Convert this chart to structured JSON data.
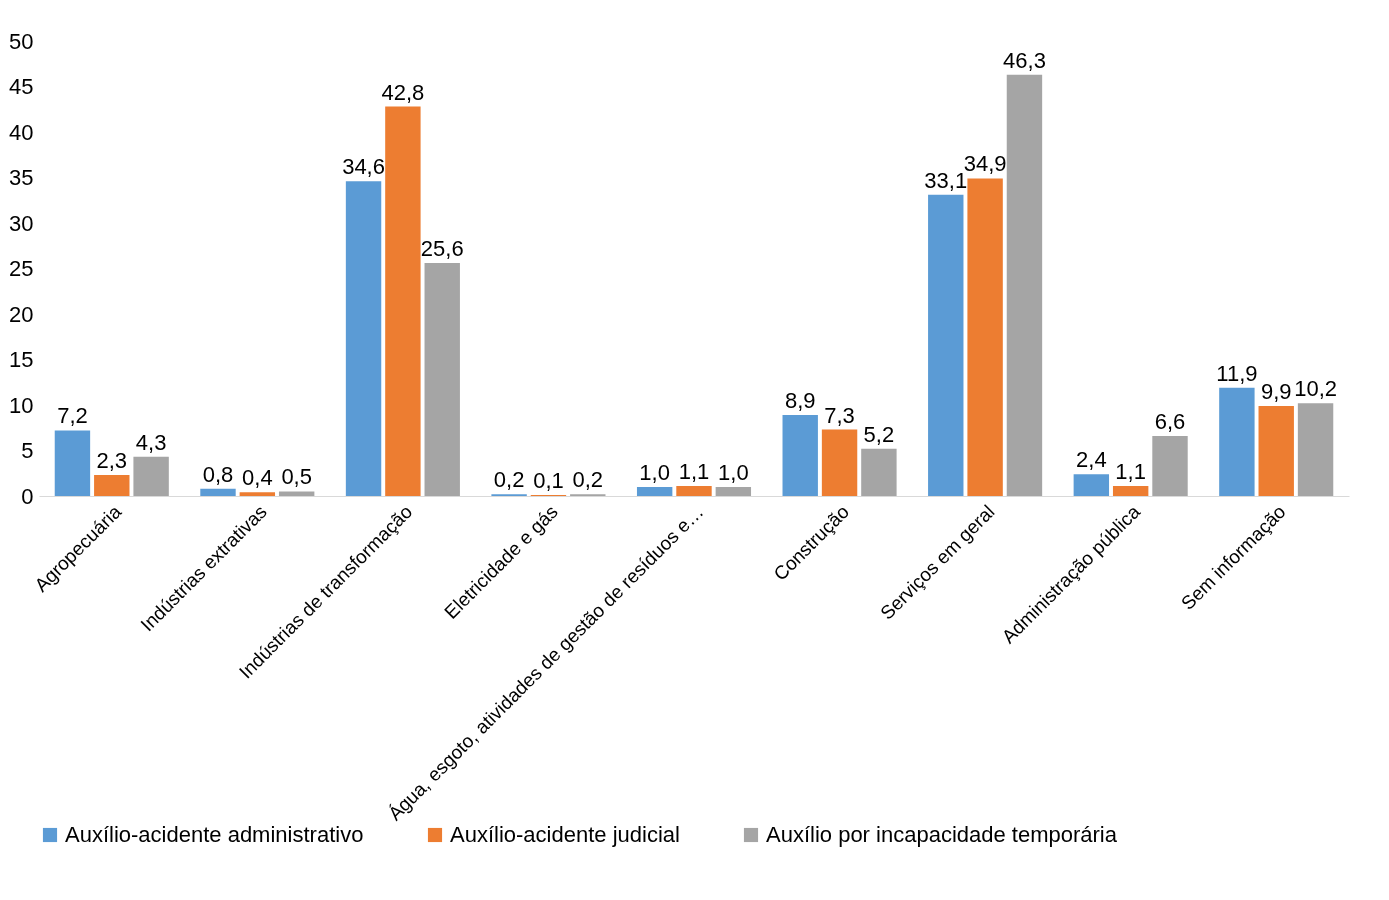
{
  "chart_data": {
    "type": "bar",
    "categories": [
      "Agropecuária",
      "Indústrias extrativas",
      "Indústrias de transformação",
      "Eletricidade e gás",
      "Água, esgoto, atividades de gestão de resíduos e…",
      "Construção",
      "Serviços em geral",
      "Administração pública",
      "Sem informação"
    ],
    "series": [
      {
        "name": "Auxílio-acidente administrativo",
        "color": "#5b9bd5",
        "values": [
          7.2,
          0.8,
          34.6,
          0.2,
          1.0,
          8.9,
          33.1,
          2.4,
          11.9
        ],
        "value_labels": [
          "7,2",
          "0,8",
          "34,6",
          "0,2",
          "1,0",
          "8,9",
          "33,1",
          "2,4",
          "11,9"
        ]
      },
      {
        "name": "Auxílio-acidente judicial",
        "color": "#ed7d31",
        "values": [
          2.3,
          0.4,
          42.8,
          0.1,
          1.1,
          7.3,
          34.9,
          1.1,
          9.9
        ],
        "value_labels": [
          "2,3",
          "0,4",
          "42,8",
          "0,1",
          "1,1",
          "7,3",
          "34,9",
          "1,1",
          "9,9"
        ]
      },
      {
        "name": "Auxílio por incapacidade temporária",
        "color": "#a5a5a5",
        "values": [
          4.3,
          0.5,
          25.6,
          0.2,
          1.0,
          5.2,
          46.3,
          6.6,
          10.2
        ],
        "value_labels": [
          "4,3",
          "0,5",
          "25,6",
          "0,2",
          "1,0",
          "5,2",
          "46,3",
          "6,6",
          "10,2"
        ]
      }
    ],
    "ylim": [
      0,
      50
    ],
    "yticks": [
      0,
      5,
      10,
      15,
      20,
      25,
      30,
      35,
      40,
      45,
      50
    ],
    "grid": false,
    "legend": "bottom"
  }
}
